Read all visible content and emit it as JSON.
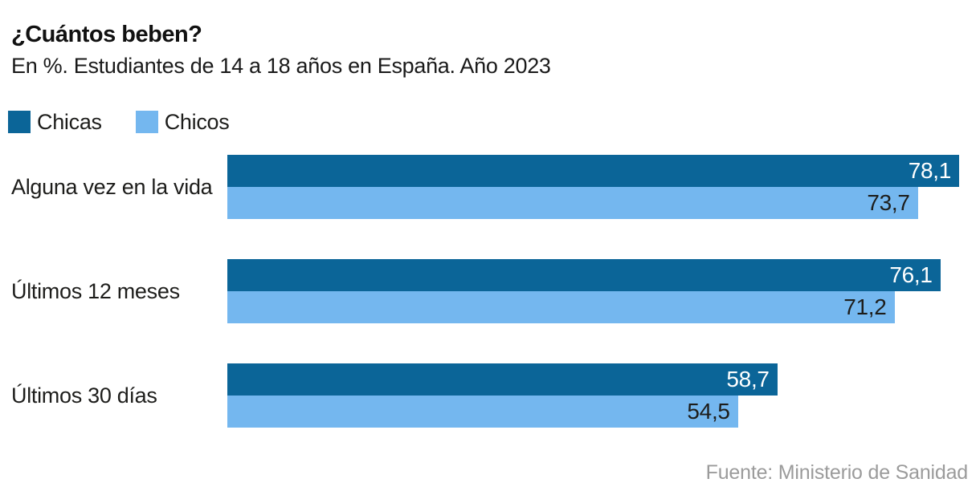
{
  "header": {
    "title": "¿Cuántos beben?",
    "subtitle": "En %. Estudiantes de 14 a 18 años en España. Año 2023"
  },
  "legend": [
    {
      "label": "Chicas",
      "color": "#0b6598"
    },
    {
      "label": "Chicos",
      "color": "#74b7ef"
    }
  ],
  "chart_data": {
    "type": "bar",
    "orientation": "horizontal",
    "title": "¿Cuántos beben?",
    "subtitle": "En %. Estudiantes de 14 a 18 años en España. Año 2023",
    "unit": "%",
    "categories": [
      "Alguna vez en la vida",
      "Últimos 12 meses",
      "Últimos 30 días"
    ],
    "series": [
      {
        "name": "Chicas",
        "color": "#0b6598",
        "values": [
          78.1,
          76.1,
          58.7
        ],
        "value_labels": [
          "78,1",
          "76,1",
          "58,7"
        ],
        "label_color": "#ffffff"
      },
      {
        "name": "Chicos",
        "color": "#74b7ef",
        "values": [
          73.7,
          71.2,
          54.5
        ],
        "value_labels": [
          "73,7",
          "71,2",
          "54,5"
        ],
        "label_color": "#1d1d1b"
      }
    ],
    "xlim": [
      0,
      78.1
    ],
    "grid": false,
    "value_label_position": "inside-end",
    "legend_position": "top-left",
    "source": "Fuente: Ministerio de Sanidad"
  },
  "footer": {
    "source": "Fuente: Ministerio de Sanidad"
  },
  "colors": {
    "chicas": "#0b6598",
    "chicos": "#74b7ef",
    "title_text": "#111111",
    "body_text": "#1d1d1b",
    "source_text": "#9b9b9b",
    "background": "#ffffff"
  }
}
